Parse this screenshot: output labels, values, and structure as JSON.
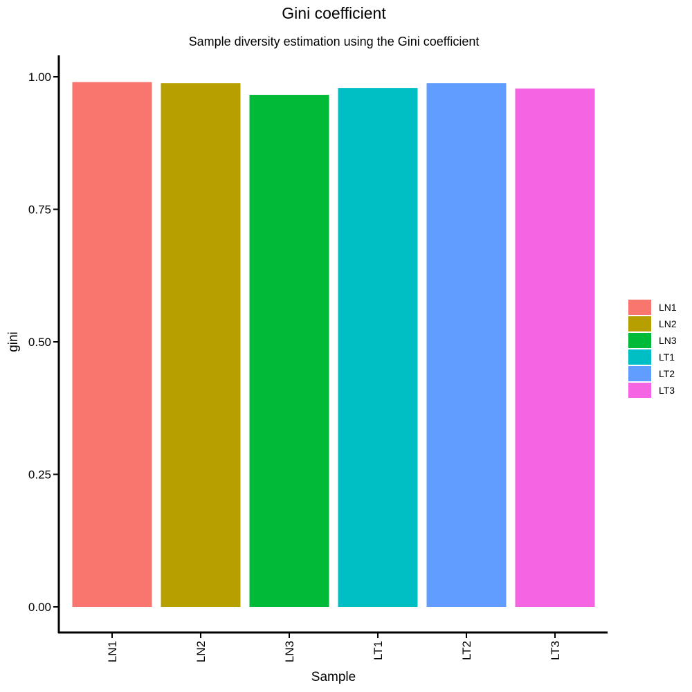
{
  "chart_data": {
    "type": "bar",
    "title": "Gini coefficient",
    "subtitle": "Sample diversity estimation using the Gini coefficient",
    "xlabel": "Sample",
    "ylabel": "gini",
    "categories": [
      "LN1",
      "LN2",
      "LN3",
      "LT1",
      "LT2",
      "LT3"
    ],
    "values": [
      0.99,
      0.988,
      0.966,
      0.979,
      0.988,
      0.978
    ],
    "colors": [
      "#F8766D",
      "#B79F00",
      "#00BA38",
      "#00BFC4",
      "#619CFF",
      "#F564E3"
    ],
    "ylim": [
      0,
      1
    ],
    "yticks": [
      0.0,
      0.25,
      0.5,
      0.75,
      1.0
    ],
    "ytick_labels": [
      "0.00",
      "0.25",
      "0.50",
      "0.75",
      "1.00"
    ],
    "grid": false,
    "legend": {
      "position": "right",
      "entries": [
        "LN1",
        "LN2",
        "LN3",
        "LT1",
        "LT2",
        "LT3"
      ]
    }
  }
}
